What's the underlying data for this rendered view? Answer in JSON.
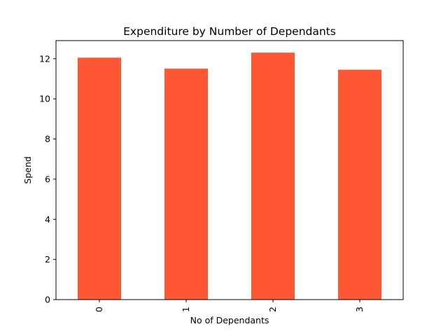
{
  "chart_data": {
    "type": "bar",
    "title": "Expenditure by Number of Dependants",
    "xlabel": "No of Dependants",
    "ylabel": "Spend",
    "categories": [
      "0",
      "1",
      "2",
      "3"
    ],
    "values": [
      12.05,
      11.5,
      12.3,
      11.45
    ],
    "ylim": [
      0,
      12.9
    ],
    "yticks": [
      0,
      2,
      4,
      6,
      8,
      10,
      12
    ],
    "grid": false,
    "x_tick_rotation": 90,
    "bar_color": "#ff5733"
  }
}
